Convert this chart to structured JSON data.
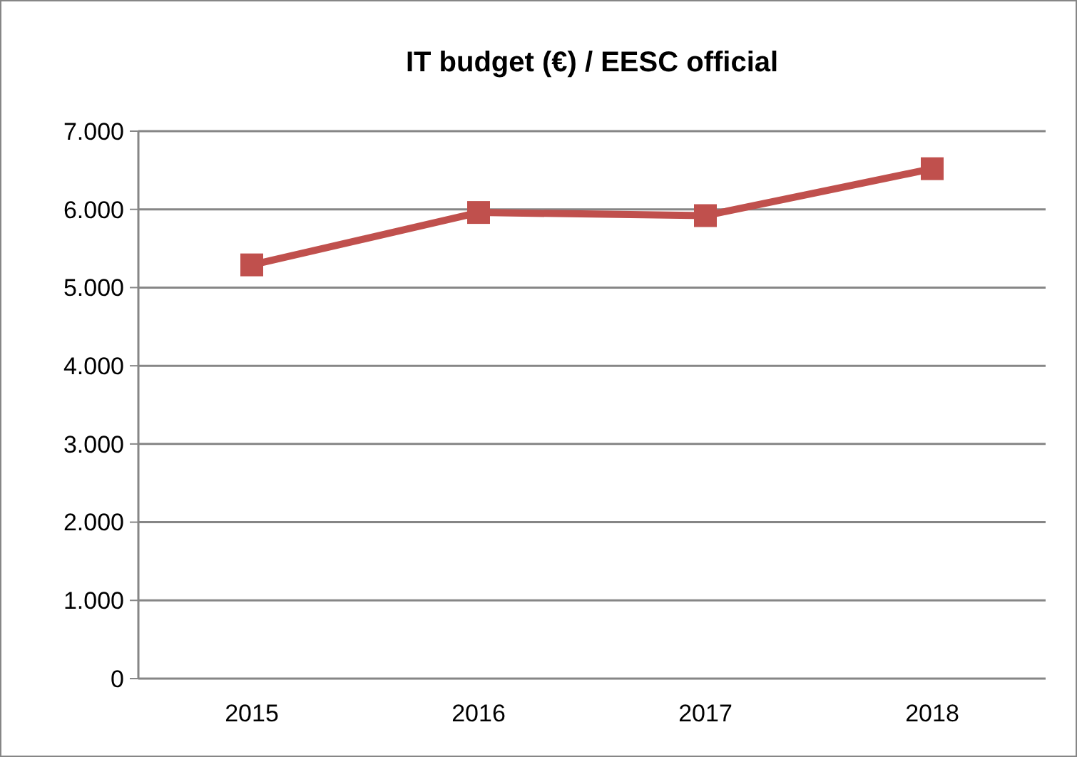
{
  "chart_data": {
    "type": "line",
    "title": "IT budget (€) / EESC official",
    "categories": [
      "2015",
      "2016",
      "2017",
      "2018"
    ],
    "series": [
      {
        "color": "#c0504d",
        "values": [
          5290,
          5960,
          5920,
          6520
        ]
      }
    ],
    "ylim": [
      0,
      7000
    ],
    "yticks": [
      0,
      {
        "value": 1000,
        "label": "1.000"
      },
      {
        "value": 2000,
        "label": "2.000"
      },
      {
        "value": 3000,
        "label": "3.000"
      },
      {
        "value": 4000,
        "label": "4.000"
      },
      {
        "value": 5000,
        "label": "5.000"
      },
      {
        "value": 6000,
        "label": "6.000"
      },
      {
        "value": 7000,
        "label": "7.000"
      }
    ],
    "grid": "y",
    "marker": "square",
    "line_style": "solid"
  }
}
